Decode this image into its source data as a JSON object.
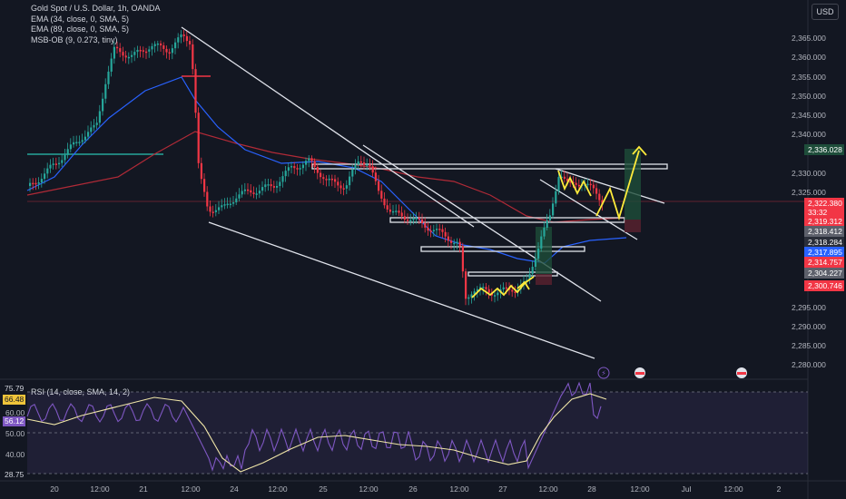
{
  "legend": {
    "symbol": "Gold Spot / U.S. Dollar, 1h, OANDA",
    "ema1": "EMA (34, close, 0, SMA, 5)",
    "ema2": "EMA (89, close, 0, SMA, 5)",
    "msb": "MSB-OB (9, 0.273, tiny)"
  },
  "currency": "USD",
  "price_axis": [
    "2,365.000",
    "2,360.000",
    "2,355.000",
    "2,350.000",
    "2,345.000",
    "2,340.000",
    "2,330.000",
    "2,325.000",
    "2,295.000",
    "2,290.000",
    "2,285.000",
    "2,280.000"
  ],
  "price_labels": [
    {
      "text": "2,336.028",
      "color": "#1e4d3a"
    },
    {
      "text": "2,322.380",
      "color": "#f23645"
    },
    {
      "text": "33:32",
      "color": "#f23645"
    },
    {
      "text": "2,319.312",
      "color": "#f23645"
    },
    {
      "text": "2,318.412",
      "color": "#5d606b"
    },
    {
      "text": "2,318.284",
      "color": "#2a2e39"
    },
    {
      "text": "2,317.895",
      "color": "#2962ff"
    },
    {
      "text": "2,314.757",
      "color": "#f23645"
    },
    {
      "text": "2,304.227",
      "color": "#5d606b"
    },
    {
      "text": "2,300.746",
      "color": "#f23645"
    }
  ],
  "rsi": {
    "title": "RSI (14, close, SMA, 14, 2)",
    "axis": [
      "60.00",
      "50.00",
      "40.00"
    ],
    "labels": [
      {
        "text": "75.79",
        "bg": "#131722",
        "fg": "#d1d4dc"
      },
      {
        "text": "66.48",
        "bg": "#f0c43a",
        "fg": "#131722"
      },
      {
        "text": "56.12",
        "bg": "#7e57c2",
        "fg": "#ffffff"
      },
      {
        "text": "28.75",
        "bg": "#131722",
        "fg": "#d1d4dc"
      }
    ]
  },
  "time_axis": [
    "20",
    "12:00",
    "21",
    "12:00",
    "24",
    "12:00",
    "25",
    "12:00",
    "26",
    "12:00",
    "27",
    "12:00",
    "28",
    "12:00",
    "Jul",
    "12:00",
    "2"
  ]
}
